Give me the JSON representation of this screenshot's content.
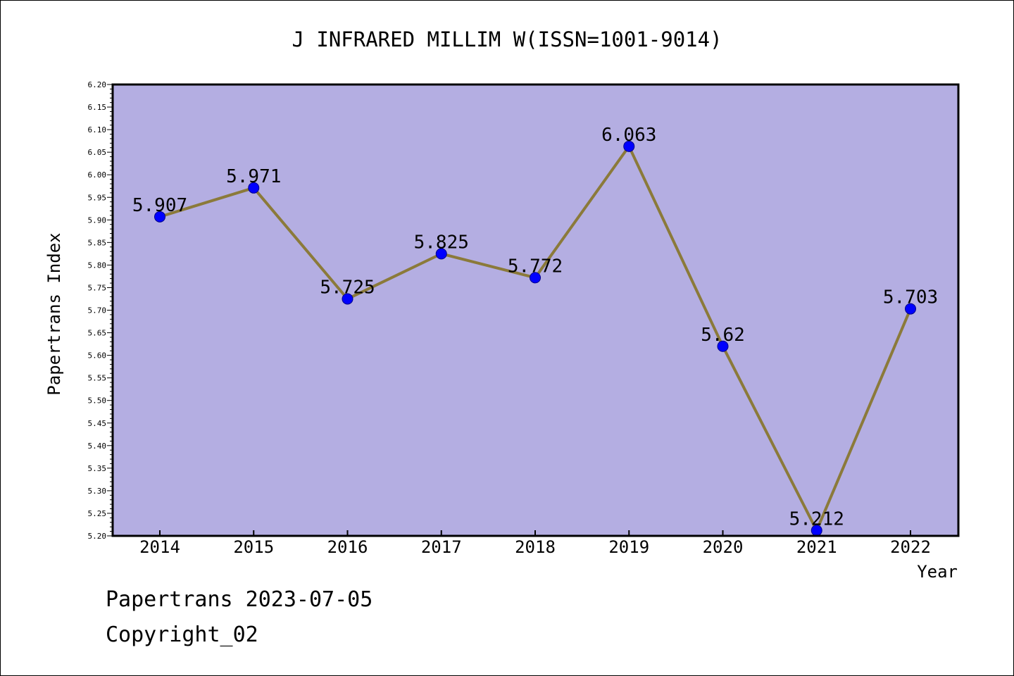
{
  "chart_data": {
    "type": "line",
    "title": "J INFRARED MILLIM W(ISSN=1001-9014)",
    "xlabel": "Year",
    "ylabel": "Papertrans Index",
    "categories": [
      "2014",
      "2015",
      "2016",
      "2017",
      "2018",
      "2019",
      "2020",
      "2021",
      "2022"
    ],
    "series": [
      {
        "values": [
          5.907,
          5.971,
          5.725,
          5.825,
          5.772,
          6.063,
          5.62,
          5.212,
          5.703
        ],
        "labels": [
          "5.907",
          "5.971",
          "5.725",
          "5.825",
          "5.772",
          "6.063",
          "5.62",
          "5.212",
          "5.703"
        ]
      }
    ],
    "ylim": [
      5.2,
      6.2
    ],
    "yticks": [
      "5.20",
      "5.25",
      "5.30",
      "5.35",
      "5.40",
      "5.45",
      "5.50",
      "5.55",
      "5.60",
      "5.65",
      "5.70",
      "5.75",
      "5.80",
      "5.85",
      "5.90",
      "5.95",
      "6.00",
      "6.05",
      "6.10",
      "6.15",
      "6.20"
    ],
    "grid": false,
    "legend": "none",
    "colors": {
      "plot_background": "#b4aee2",
      "line": "#8b7a3a",
      "marker": "#0000ff",
      "marker_edge": "#00008b",
      "axis": "#000000",
      "text": "#000000"
    }
  },
  "footer": {
    "date_line": "Papertrans 2023-07-05",
    "copyright_line": "Copyright_02"
  }
}
